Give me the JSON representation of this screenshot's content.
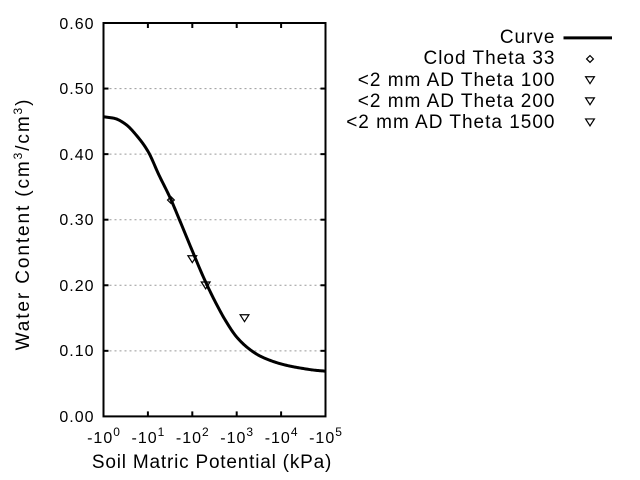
{
  "chart_data": {
    "type": "line",
    "title": "",
    "xlabel": "Soil Matric Potential (kPa)",
    "ylabel": "Water Content (cm3/cm3)",
    "ylabel_parts": [
      {
        "text": "Water Content (cm"
      },
      {
        "sup": "3"
      },
      {
        "text": "/cm"
      },
      {
        "sup": "3"
      },
      {
        "text": ")"
      }
    ],
    "x_axis": {
      "scale": "log10-negative",
      "unit": "kPa",
      "ticks": [
        {
          "base": "-10",
          "exp": "0",
          "log10": 0
        },
        {
          "base": "-10",
          "exp": "1",
          "log10": 1
        },
        {
          "base": "-10",
          "exp": "2",
          "log10": 2
        },
        {
          "base": "-10",
          "exp": "3",
          "log10": 3
        },
        {
          "base": "-10",
          "exp": "4",
          "log10": 4
        },
        {
          "base": "-10",
          "exp": "5",
          "log10": 5
        }
      ],
      "range_log10": [
        0,
        5
      ]
    },
    "y_axis": {
      "ticks": [
        "0.00",
        "0.10",
        "0.20",
        "0.30",
        "0.40",
        "0.50",
        "0.60"
      ],
      "tick_values": [
        0.0,
        0.1,
        0.2,
        0.3,
        0.4,
        0.5,
        0.6
      ],
      "range": [
        0.0,
        0.6
      ],
      "grid": "horizontal-dashed"
    },
    "series": [
      {
        "name": "Curve",
        "kind": "line",
        "points_log10kpa_theta": [
          [
            0.0,
            0.457
          ],
          [
            0.25,
            0.4545
          ],
          [
            0.5,
            0.4455
          ],
          [
            0.75,
            0.428
          ],
          [
            1.0,
            0.4045
          ],
          [
            1.25,
            0.368
          ],
          [
            1.5,
            0.3335
          ],
          [
            1.75,
            0.2935
          ],
          [
            2.0,
            0.2525
          ],
          [
            2.25,
            0.2125
          ],
          [
            2.5,
            0.177
          ],
          [
            2.75,
            0.146
          ],
          [
            3.0,
            0.121
          ],
          [
            3.25,
            0.1045
          ],
          [
            3.5,
            0.093
          ],
          [
            3.75,
            0.0855
          ],
          [
            4.0,
            0.08
          ],
          [
            4.25,
            0.076
          ],
          [
            4.5,
            0.073
          ],
          [
            4.75,
            0.0705
          ],
          [
            5.0,
            0.069
          ]
        ]
      },
      {
        "name": "Clod Theta 33",
        "kind": "scatter",
        "marker": "diamond",
        "points_kpa_theta": [
          [
            33,
            0.33
          ]
        ]
      },
      {
        "name": "<2 mm AD Theta 100",
        "kind": "scatter",
        "marker": "triangle-down",
        "points_kpa_theta": [
          [
            100,
            0.24
          ]
        ]
      },
      {
        "name": "<2 mm AD Theta 200",
        "kind": "scatter",
        "marker": "triangle-down",
        "points_kpa_theta": [
          [
            200,
            0.2
          ]
        ]
      },
      {
        "name": "<2 mm AD Theta 1500",
        "kind": "scatter",
        "marker": "triangle-down",
        "points_kpa_theta": [
          [
            1500,
            0.15
          ]
        ]
      }
    ],
    "legend": {
      "position": "top-right-outside",
      "entries": [
        {
          "label": "Curve",
          "sample": "line"
        },
        {
          "label": "Clod Theta 33",
          "sample": "diamond"
        },
        {
          "label": "<2 mm AD Theta 100",
          "sample": "triangle-down"
        },
        {
          "label": "<2 mm AD Theta 200",
          "sample": "triangle-down"
        },
        {
          "label": "<2 mm AD Theta 1500",
          "sample": "triangle-down"
        }
      ]
    },
    "colors": {
      "line": "#000000",
      "marker": "#000000",
      "grid": "#999999",
      "axis": "#000000",
      "background": "#ffffff"
    }
  }
}
